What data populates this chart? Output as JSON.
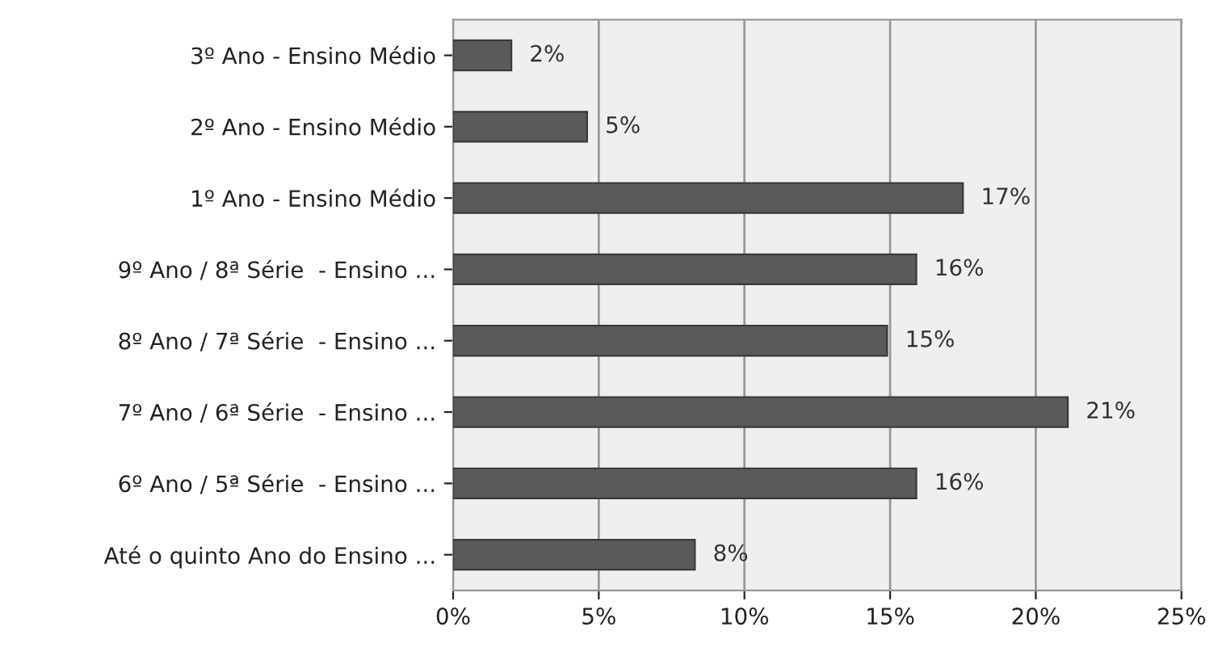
{
  "chart_data": {
    "type": "bar",
    "orientation": "horizontal",
    "categories": [
      "3º Ano - Ensino Médio",
      "2º Ano - Ensino Médio",
      "1º Ano - Ensino Médio",
      "9º Ano / 8ª Série  - Ensino ...",
      "8º Ano / 7ª Série  - Ensino ...",
      "7º Ano / 6ª Série  - Ensino ...",
      "6º Ano / 5ª Série  - Ensino ...",
      "Até o quinto Ano do Ensino ..."
    ],
    "values": [
      2.0,
      4.6,
      17.5,
      15.9,
      14.9,
      21.1,
      15.9,
      8.3
    ],
    "value_labels": [
      "2%",
      "5%",
      "17%",
      "16%",
      "15%",
      "21%",
      "16%",
      "8%"
    ],
    "color": "#5a5a5c",
    "xlim": [
      0,
      25
    ],
    "xticks": [
      {
        "value": 0,
        "label": "0%"
      },
      {
        "value": 5,
        "label": "5%"
      },
      {
        "value": 10,
        "label": "10%"
      },
      {
        "value": 15,
        "label": "15%"
      },
      {
        "value": 20,
        "label": "20%"
      },
      {
        "value": 25,
        "label": "25%"
      }
    ],
    "grid": "x"
  }
}
